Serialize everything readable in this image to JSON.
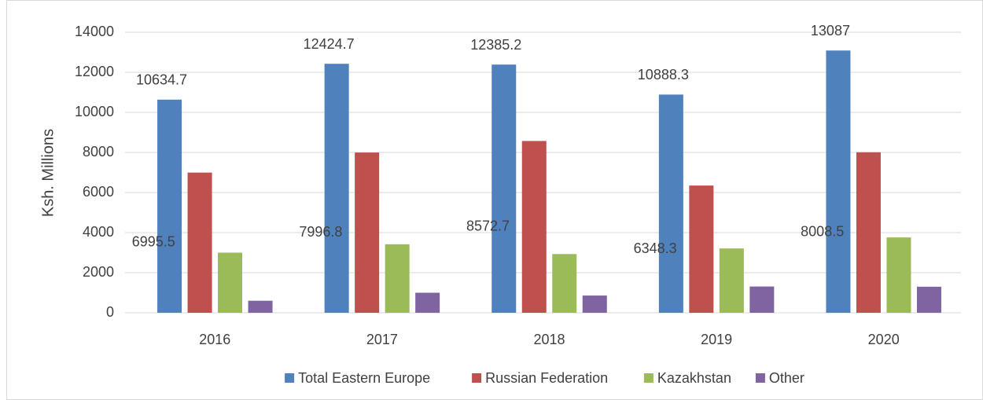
{
  "chart_data": {
    "type": "bar",
    "y_label": "Ksh. Millions",
    "categories": [
      "2016",
      "2017",
      "2018",
      "2019",
      "2020"
    ],
    "series": [
      {
        "name": "Total Eastern Europe",
        "color": "#4f81bd",
        "values": [
          10634.7,
          12424.7,
          12385.2,
          10888.3,
          13087
        ],
        "data_labels": true
      },
      {
        "name": "Russian Federation",
        "color": "#c0504d",
        "values": [
          6995.5,
          7996.8,
          8572.7,
          6348.3,
          8008.5
        ],
        "data_labels": true
      },
      {
        "name": "Kazakhstan",
        "color": "#9bbb59",
        "values": [
          3000,
          3420,
          2930,
          3210,
          3760
        ],
        "data_labels": false
      },
      {
        "name": "Other",
        "color": "#8064a2",
        "values": [
          600,
          1000,
          860,
          1310,
          1300
        ],
        "data_labels": false
      }
    ],
    "ylim": [
      0,
      14000
    ],
    "yticks": [
      0,
      2000,
      4000,
      6000,
      8000,
      10000,
      12000,
      14000
    ],
    "grid": true,
    "legend": "bottom"
  }
}
